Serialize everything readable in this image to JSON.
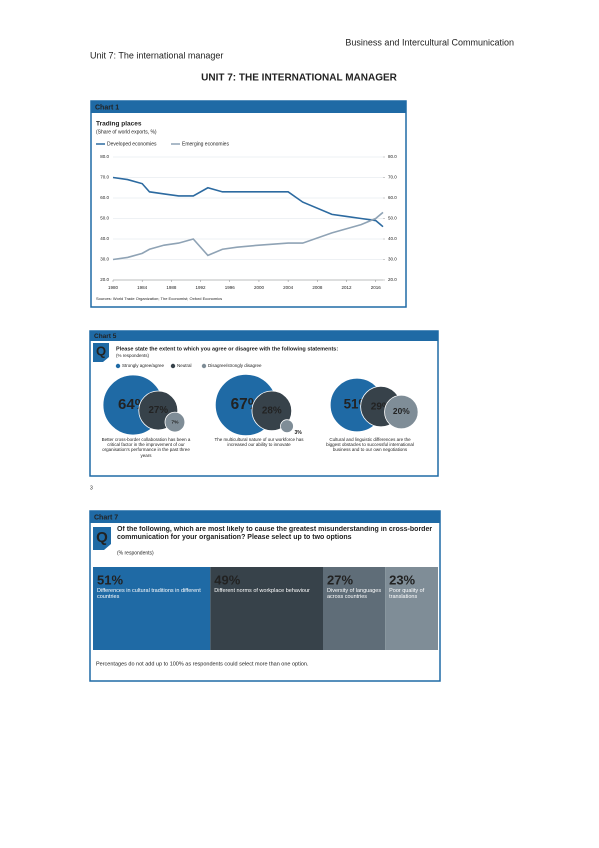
{
  "header": {
    "right": "Business and Intercultural Communication",
    "left": "Unit 7: The international manager"
  },
  "title": "UNIT 7: THE INTERNATIONAL MANAGER",
  "page_number": "3",
  "chart_data": [
    {
      "type": "line",
      "label": "Chart 1",
      "title": "Trading places",
      "subtitle": "(Share of world exports, %)",
      "x": [
        1980,
        1982,
        1984,
        1985,
        1987,
        1989,
        1991,
        1993,
        1995,
        1997,
        2000,
        2004,
        2006,
        2010,
        2012,
        2014,
        2016,
        2017
      ],
      "series": [
        {
          "name": "Developed economies",
          "color": "#2c6aa0",
          "values": [
            70,
            69,
            67,
            63,
            62,
            61,
            61,
            65,
            63,
            63,
            63,
            63,
            58,
            52,
            51,
            50,
            49,
            46
          ]
        },
        {
          "name": "Emerging economies",
          "color": "#8fa3b5",
          "values": [
            30,
            31,
            33,
            35,
            37,
            38,
            40,
            32,
            35,
            36,
            37,
            38,
            38,
            43,
            45,
            47,
            50,
            53
          ]
        }
      ],
      "xlim": [
        1980,
        2017
      ],
      "xticks": [
        1980,
        1984,
        1988,
        1992,
        1996,
        2000,
        2004,
        2008,
        2012,
        2016
      ],
      "ylim": [
        20,
        80
      ],
      "yticks": [
        {
          "value": 20,
          "label": "20.0"
        },
        {
          "value": 30,
          "label": "30.0"
        },
        {
          "value": 40,
          "label": "40.0"
        },
        {
          "value": 50,
          "label": "50.0"
        },
        {
          "value": 60,
          "label": "60.0"
        },
        {
          "value": 70,
          "label": "70.0"
        },
        {
          "value": 80,
          "label": "80.0"
        }
      ],
      "y2lim": [
        20,
        80
      ],
      "y2ticks": [
        {
          "value": 20,
          "label": "20.0"
        },
        {
          "value": 30,
          "label": "30.0"
        },
        {
          "value": 40,
          "label": "40.0"
        },
        {
          "value": 50,
          "label": "50.0"
        },
        {
          "value": 60,
          "label": "60.0"
        },
        {
          "value": 70,
          "label": "70.0"
        },
        {
          "value": 80,
          "label": "80.0"
        }
      ],
      "grid": true,
      "source": "Sources: World Trade Organization; The Economist; Oxford Economics"
    },
    {
      "type": "bubble",
      "label": "Chart 5",
      "icon": "Q",
      "title": "Please state the extent to which you agree or disagree with the following statements:",
      "subtitle": "(% respondents)",
      "categories": [
        "Better cross-border collaboration has been a critical factor in the improvement of our organisation's performance in the past three years",
        "The multicultural nature of our workforce has increased our ability to innovate",
        "Cultural and linguistic differences are the biggest obstacles to successful international business and to our own negotiations"
      ],
      "series": [
        {
          "name": "Strongly agree/agree",
          "color": "#1f6aa5",
          "values": [
            64,
            67,
            51
          ],
          "value_labels": [
            "64%",
            "67%",
            "51%"
          ]
        },
        {
          "name": "Neutral",
          "color": "#37424a",
          "values": [
            27,
            28,
            29
          ],
          "value_labels": [
            "27%",
            "28%",
            "29%"
          ]
        },
        {
          "name": "Disagree/strongly disagree",
          "color": "#7f8d97",
          "values": [
            7,
            3,
            20
          ],
          "value_labels": [
            "7%",
            "3%",
            "20%"
          ]
        }
      ]
    },
    {
      "type": "block",
      "label": "Chart 7",
      "icon": "Q",
      "title": "Of the following, which are most likely to cause the greatest misunderstanding in cross-border communication for your organisation? Please select up to two options",
      "subtitle": "(% respondents)",
      "categories": [
        "Differences in cultural traditions in different countries",
        "Different norms of workplace behaviour",
        "Diversity of languages across countries",
        "Poor quality of translations"
      ],
      "values": [
        51,
        49,
        27,
        23
      ],
      "value_labels": [
        "51%",
        "49%",
        "27%",
        "23%"
      ],
      "colors": [
        "#1f6aa5",
        "#37424a",
        "#5f6d78",
        "#7f8d97"
      ],
      "note": "Percentages do not add up to 100% as respondents could select more than one option."
    }
  ]
}
